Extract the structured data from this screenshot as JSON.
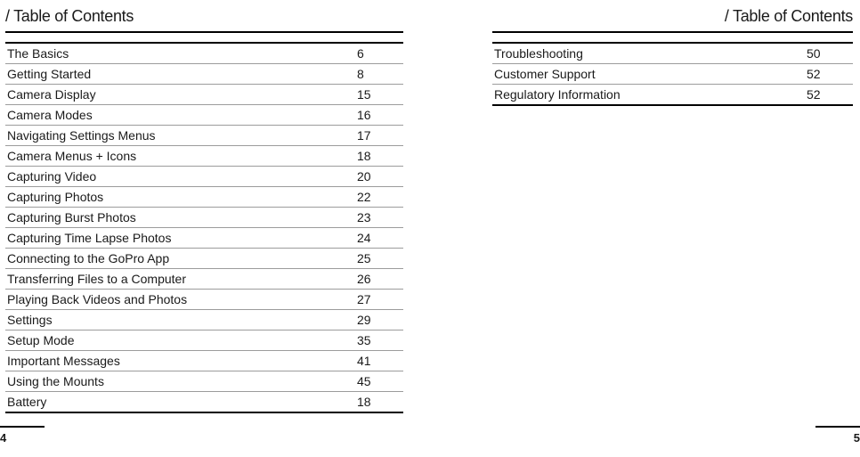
{
  "heading": "/ Table of Contents",
  "left_page_number": "4",
  "right_page_number": "5",
  "left_toc": [
    {
      "title": "The Basics",
      "page": "6"
    },
    {
      "title": "Getting Started",
      "page": "8"
    },
    {
      "title": "Camera Display",
      "page": "15"
    },
    {
      "title": "Camera Modes",
      "page": "16"
    },
    {
      "title": "Navigating Settings Menus",
      "page": "17"
    },
    {
      "title": "Camera Menus + Icons",
      "page": "18"
    },
    {
      "title": "Capturing Video",
      "page": "20"
    },
    {
      "title": "Capturing Photos",
      "page": "22"
    },
    {
      "title": "Capturing Burst Photos",
      "page": "23"
    },
    {
      "title": "Capturing Time Lapse Photos",
      "page": "24"
    },
    {
      "title": "Connecting to the GoPro App",
      "page": "25"
    },
    {
      "title": "Transferring Files to a Computer",
      "page": "26"
    },
    {
      "title": "Playing Back Videos and Photos",
      "page": "27"
    },
    {
      "title": "Settings",
      "page": "29"
    },
    {
      "title": "Setup Mode",
      "page": "35"
    },
    {
      "title": "Important Messages",
      "page": "41"
    },
    {
      "title": "Using the Mounts",
      "page": "45"
    },
    {
      "title": "Battery",
      "page": "18"
    }
  ],
  "right_toc": [
    {
      "title": "Troubleshooting",
      "page": "50"
    },
    {
      "title": "Customer Support",
      "page": "52"
    },
    {
      "title": "Regulatory Information",
      "page": "52"
    }
  ],
  "style": {
    "font_family": "Helvetica Neue, Arial, sans-serif",
    "heading_fontsize": 18,
    "row_fontsize": 14,
    "pagenum_fontsize": 13,
    "text_color": "#1a1a1a",
    "rule_heavy": "#000000",
    "rule_light": "#9c9c9c",
    "background": "#ffffff"
  }
}
